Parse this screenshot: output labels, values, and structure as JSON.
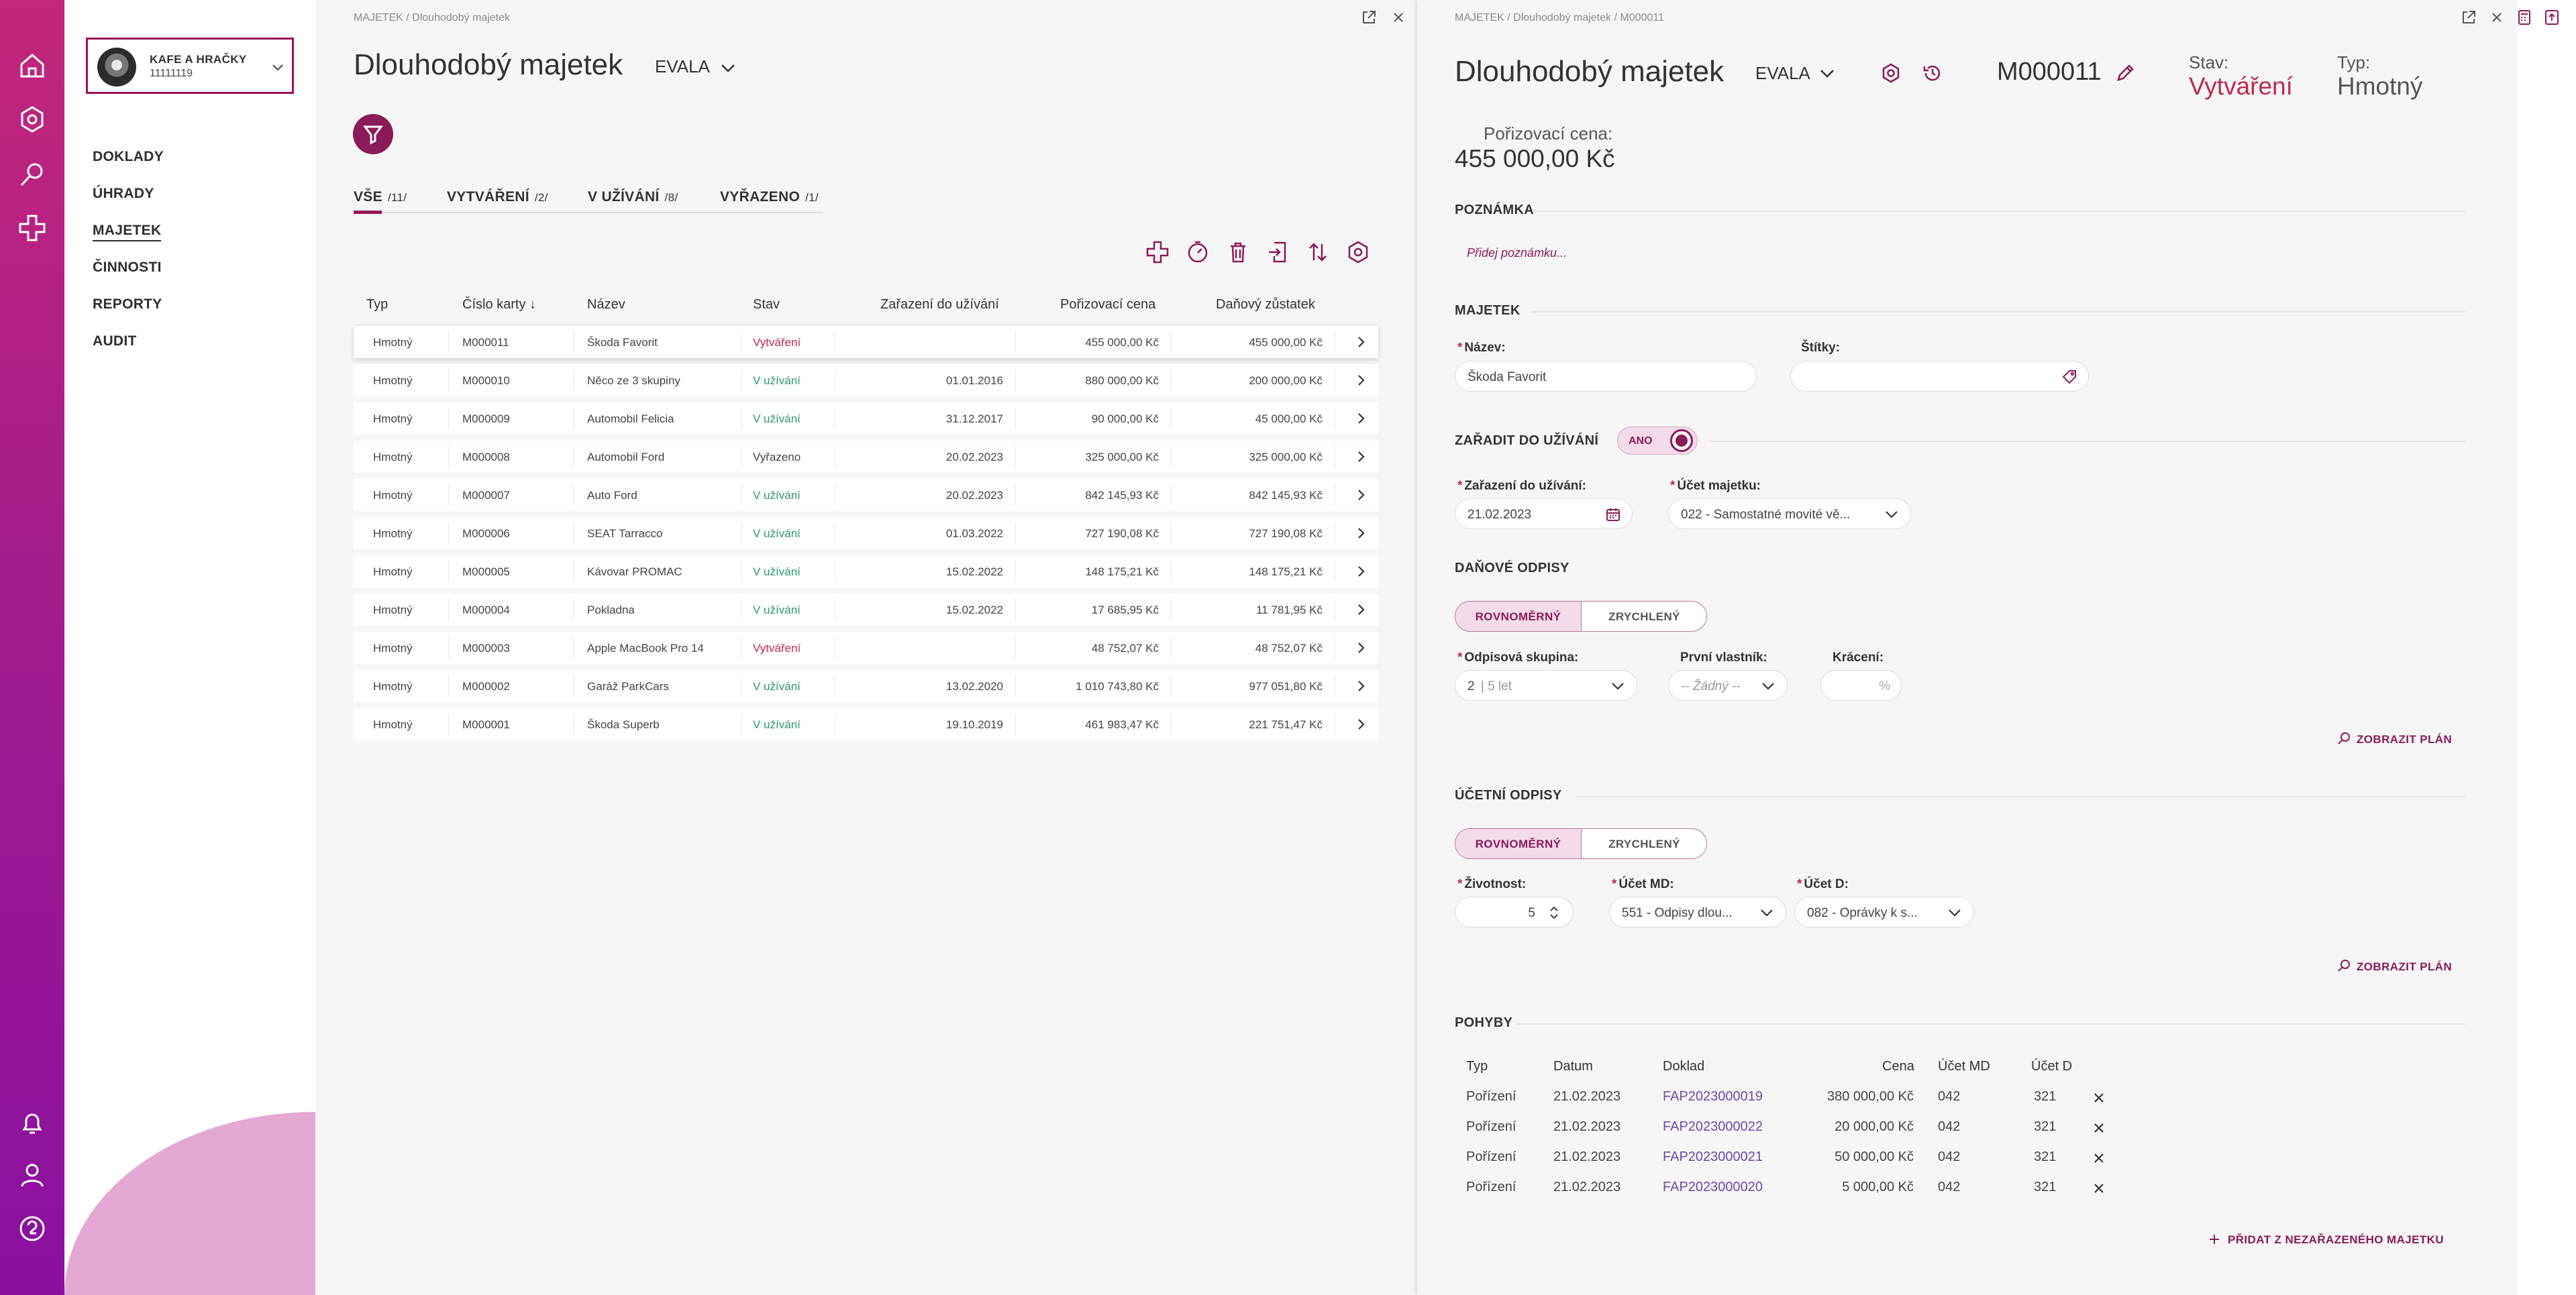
{
  "company": {
    "name": "KAFE A HRAČKY",
    "id": "11111119"
  },
  "nav": [
    "DOKLADY",
    "ÚHRADY",
    "MAJETEK",
    "ČINNOSTI",
    "REPORTY",
    "AUDIT"
  ],
  "list": {
    "breadcrumb": [
      "MAJETEK",
      "/",
      "Dlouhodobý majetek"
    ],
    "title": "Dlouhodobý majetek",
    "subtitle": "EVALA",
    "tabs": [
      {
        "label": "VŠE",
        "count": "/11/"
      },
      {
        "label": "VYTVÁŘENÍ",
        "count": "/2/"
      },
      {
        "label": "V UŽÍVÁNÍ",
        "count": "/8/"
      },
      {
        "label": "VYŘAZENO",
        "count": "/1/"
      }
    ],
    "columns": [
      "Typ",
      "Číslo karty ↓",
      "Název",
      "Stav",
      "Zařazení do užívání",
      "Pořizovací cena",
      "Daňový zůstatek"
    ],
    "rows": [
      {
        "typ": "Hmotný",
        "cislo": "M000011",
        "nazev": "Škoda Favorit",
        "stav": "Vytváření",
        "zarazeni": "",
        "cena": "455 000,00 Kč",
        "zustatek": "455 000,00 Kč"
      },
      {
        "typ": "Hmotný",
        "cislo": "M000010",
        "nazev": "Něco ze 3 skupiny",
        "stav": "V užívání",
        "zarazeni": "01.01.2016",
        "cena": "880 000,00 Kč",
        "zustatek": "200 000,00 Kč"
      },
      {
        "typ": "Hmotný",
        "cislo": "M000009",
        "nazev": "Automobil Felicia",
        "stav": "V užívání",
        "zarazeni": "31.12.2017",
        "cena": "90 000,00 Kč",
        "zustatek": "45 000,00 Kč"
      },
      {
        "typ": "Hmotný",
        "cislo": "M000008",
        "nazev": "Automobil Ford",
        "stav": "Vyřazeno",
        "zarazeni": "20.02.2023",
        "cena": "325 000,00 Kč",
        "zustatek": "325 000,00 Kč"
      },
      {
        "typ": "Hmotný",
        "cislo": "M000007",
        "nazev": "Auto Ford",
        "stav": "V užívání",
        "zarazeni": "20.02.2023",
        "cena": "842 145,93 Kč",
        "zustatek": "842 145,93 Kč"
      },
      {
        "typ": "Hmotný",
        "cislo": "M000006",
        "nazev": "SEAT Tarracco",
        "stav": "V užívání",
        "zarazeni": "01.03.2022",
        "cena": "727 190,08 Kč",
        "zustatek": "727 190,08 Kč"
      },
      {
        "typ": "Hmotný",
        "cislo": "M000005",
        "nazev": "Kávovar PROMAC",
        "stav": "V užívání",
        "zarazeni": "15.02.2022",
        "cena": "148 175,21 Kč",
        "zustatek": "148 175,21 Kč"
      },
      {
        "typ": "Hmotný",
        "cislo": "M000004",
        "nazev": "Pokladna",
        "stav": "V užívání",
        "zarazeni": "15.02.2022",
        "cena": "17 685,95 Kč",
        "zustatek": "11 781,95 Kč"
      },
      {
        "typ": "Hmotný",
        "cislo": "M000003",
        "nazev": "Apple MacBook Pro 14",
        "stav": "Vytváření",
        "zarazeni": "",
        "cena": "48 752,07 Kč",
        "zustatek": "48 752,07 Kč"
      },
      {
        "typ": "Hmotný",
        "cislo": "M000002",
        "nazev": "Garáž ParkCars",
        "stav": "V užívání",
        "zarazeni": "13.02.2020",
        "cena": "1 010 743,80 Kč",
        "zustatek": "977 051,80 Kč"
      },
      {
        "typ": "Hmotný",
        "cislo": "M000001",
        "nazev": "Škoda Superb",
        "stav": "V užívání",
        "zarazeni": "19.10.2019",
        "cena": "461 983,47 Kč",
        "zustatek": "221 751,47 Kč"
      }
    ]
  },
  "detail": {
    "breadcrumb": [
      "MAJETEK",
      "/",
      "Dlouhodobý majetek",
      "/",
      "M000011"
    ],
    "title": "Dlouhodobý majetek",
    "subtitle": "EVALA",
    "card_number": "M000011",
    "stav_label": "Stav:",
    "stav_value": "Vytváření",
    "typ_label": "Typ:",
    "typ_value": "Hmotný",
    "cena_label": "Pořizovací cena:",
    "cena_value": "455 000,00 Kč",
    "poznamka_header": "POZNÁMKA",
    "poznamka_placeholder": "Přidej poznámku...",
    "majetek_header": "MAJETEK",
    "nazev_label": "Název:",
    "nazev_value": "Škoda Favorit",
    "stitky_label": "Štítky:",
    "zaradit_label": "ZAŘADIT DO UŽÍVÁNÍ",
    "zaradit_toggle": "ANO",
    "zarazeni_label": "Zařazení do užívání:",
    "zarazeni_value": "21.02.2023",
    "ucet_majetku_label": "Účet majetku:",
    "ucet_majetku_value": "022 - Samostatné movité vě...",
    "danove_header": "DAŇOVÉ ODPISY",
    "danove_options": [
      "ROVNOMĚRNÝ",
      "ZRYCHLENÝ"
    ],
    "odpisova_label": "Odpisová skupina:",
    "odpisova_value": "2",
    "odpisova_suffix": "| 5 let",
    "prvni_label": "První vlastník:",
    "prvni_value": "-- Žádný --",
    "kraceni_label": "Krácení:",
    "kraceni_unit": "%",
    "zobrazit_plan": "ZOBRAZIT PLÁN",
    "ucetni_header": "ÚČETNÍ ODPISY",
    "ucetni_options": [
      "ROVNOMĚRNÝ",
      "ZRYCHLENÝ"
    ],
    "zivotnost_label": "Životnost:",
    "zivotnost_value": "5",
    "ucet_md_label": "Účet MD:",
    "ucet_md_value": "551 - Odpisy dlou...",
    "ucet_d_label": "Účet D:",
    "ucet_d_value": "082 - Oprávky k s...",
    "pohyby_header": "POHYBY",
    "pohyby_columns": [
      "Typ",
      "Datum",
      "Doklad",
      "Cena",
      "Účet MD",
      "Účet D"
    ],
    "pohyby": [
      {
        "typ": "Pořízení",
        "datum": "21.02.2023",
        "doklad": "FAP2023000019",
        "cena": "380 000,00 Kč",
        "md": "042",
        "d": "321"
      },
      {
        "typ": "Pořízení",
        "datum": "21.02.2023",
        "doklad": "FAP2023000022",
        "cena": "20 000,00 Kč",
        "md": "042",
        "d": "321"
      },
      {
        "typ": "Pořízení",
        "datum": "21.02.2023",
        "doklad": "FAP2023000021",
        "cena": "50 000,00 Kč",
        "md": "042",
        "d": "321"
      },
      {
        "typ": "Pořízení",
        "datum": "21.02.2023",
        "doklad": "FAP2023000020",
        "cena": "5 000,00 Kč",
        "md": "042",
        "d": "321"
      }
    ],
    "pridat": "PŘIDAT Z NEZAŘAZENÉHO MAJETKU"
  },
  "colors": {
    "accent": "#8b1a58",
    "green": "#2a9a6c",
    "red": "#c0294f"
  }
}
